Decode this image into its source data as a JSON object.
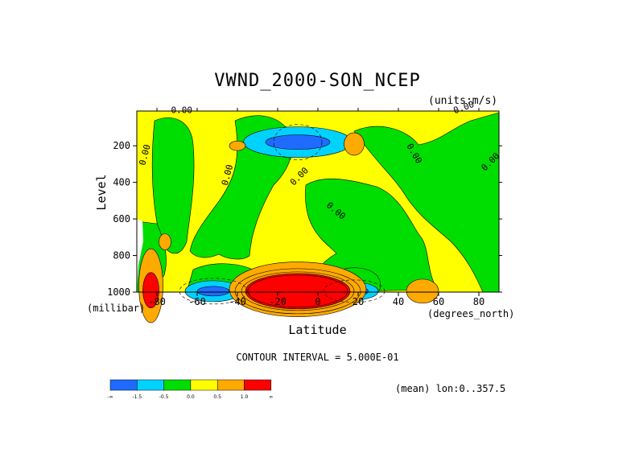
{
  "chart_data": {
    "type": "heatmap",
    "title": "VWND_2000-SON_NCEP",
    "units_label": "(units:m/s)",
    "xlabel": "Latitude",
    "xlabel_unit": "(degrees_north)",
    "ylabel": "Level",
    "ylabel_unit": "(millibar)",
    "xlim": [
      -90,
      90
    ],
    "ylim": [
      1000,
      10
    ],
    "x_ticks": [
      "-80",
      "-60",
      "-40",
      "-20",
      "0",
      "20",
      "40",
      "60",
      "80"
    ],
    "y_ticks": [
      "200",
      "400",
      "600",
      "800",
      "1000"
    ],
    "contour_interval_text": "CONTOUR INTERVAL = 5.000E-01",
    "mean_text": "(mean) lon:0..357.5",
    "contour_labels": [
      "0.00",
      "0.00",
      "0.00",
      "0.00",
      "0.00",
      "0.00",
      "0.00",
      "0.00"
    ],
    "colorbar": {
      "colors": [
        "#1f6bff",
        "#00d2ff",
        "#00dd00",
        "#ffff00",
        "#ffaa00",
        "#ff0000"
      ],
      "labels": [
        "-∞",
        "-1.5",
        "-0.5",
        "0.0",
        "0.5",
        "1.0",
        "∞"
      ]
    },
    "features": [
      {
        "kind": "core",
        "lat": -10,
        "level": 940,
        "value": 3.0
      },
      {
        "kind": "core",
        "lat": -10,
        "level": 190,
        "value": -2.0
      },
      {
        "kind": "core",
        "lat": -52,
        "level": 990,
        "value": -1.5
      },
      {
        "kind": "core",
        "lat": 18,
        "level": 990,
        "value": -1.5
      },
      {
        "kind": "core",
        "lat": 18,
        "level": 190,
        "value": 1.0
      },
      {
        "kind": "core",
        "lat": -40,
        "level": 200,
        "value": 1.0
      },
      {
        "kind": "core",
        "lat": 52,
        "level": 960,
        "value": 1.0
      },
      {
        "kind": "core",
        "lat": -82,
        "level": 960,
        "value": 3.0
      }
    ]
  }
}
